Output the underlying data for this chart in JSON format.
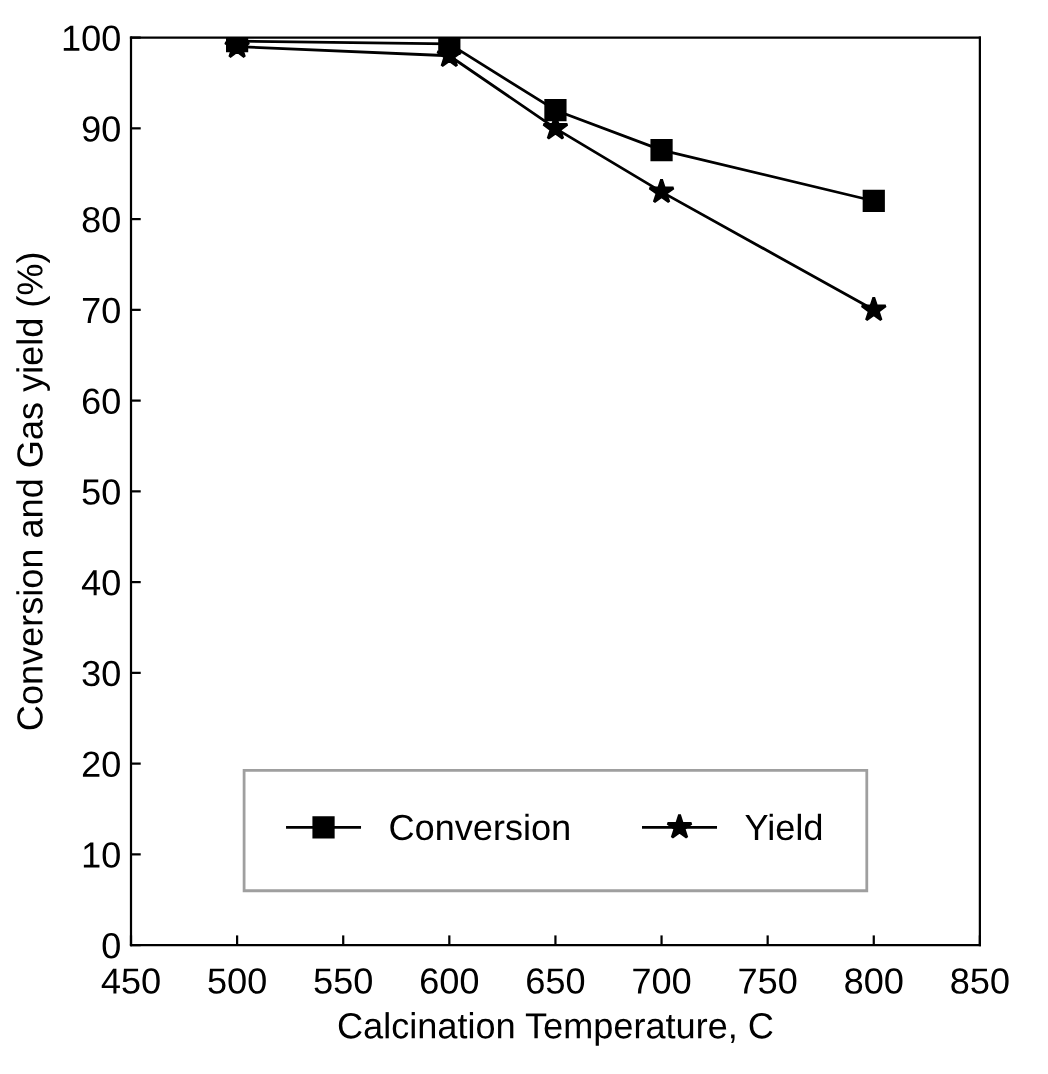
{
  "chart_data": {
    "type": "line",
    "xlabel": "Calcination Temperature, C",
    "ylabel": "Conversion and Gas yield (%)",
    "x": [
      500,
      600,
      650,
      700,
      800
    ],
    "series": [
      {
        "name": "Conversion",
        "color": "#000000",
        "values": [
          99.6,
          99.3,
          92,
          87.6,
          82
        ],
        "marker": "square"
      },
      {
        "name": "Yield",
        "color": "#000000",
        "values": [
          99,
          98,
          90,
          83,
          70
        ],
        "marker": "star"
      }
    ],
    "xlim": [
      450,
      850
    ],
    "xticks": [
      450,
      500,
      550,
      600,
      650,
      700,
      750,
      800,
      850
    ],
    "ylim": [
      0,
      100
    ],
    "yticks": [
      0,
      10,
      20,
      30,
      40,
      50,
      60,
      70,
      80,
      90,
      100
    ],
    "grid": false,
    "legend": "bottom",
    "line_style": "solid"
  }
}
